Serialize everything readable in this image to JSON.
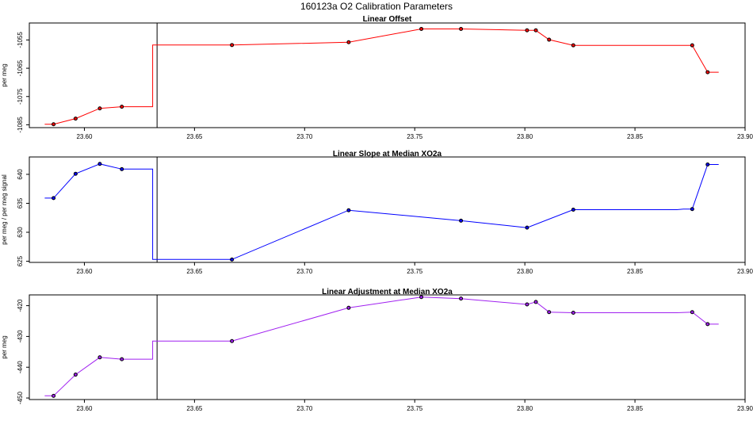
{
  "figure": {
    "main_title": "160123a   O2 Calibration Parameters"
  },
  "chart_data": [
    {
      "type": "line",
      "title": "Linear Offset",
      "xlabel": "",
      "ylabel": "per meg",
      "xlim": [
        23.575,
        23.9
      ],
      "ylim": [
        -1086,
        -1049
      ],
      "x_ticks": [
        23.6,
        23.65,
        23.7,
        23.75,
        23.8,
        23.85,
        23.9
      ],
      "x_tick_labels": [
        "23.60",
        "23.65",
        "23.70",
        "23.75",
        "23.80",
        "23.85",
        "23.90"
      ],
      "y_ticks": [
        -1085,
        -1075,
        -1065,
        -1055
      ],
      "y_tick_labels": [
        "-1085",
        "-1075",
        "-1065",
        "-1055"
      ],
      "color": "#ff0000",
      "line": [
        [
          23.582,
          -1084.8
        ],
        [
          23.586,
          -1084.8
        ],
        [
          23.596,
          -1082.8
        ],
        [
          23.607,
          -1079.2
        ],
        [
          23.617,
          -1078.6
        ],
        [
          23.631,
          -1078.6
        ],
        [
          23.631,
          -1056.8
        ],
        [
          23.667,
          -1056.8
        ],
        [
          23.72,
          -1055.8
        ],
        [
          23.753,
          -1051.1
        ],
        [
          23.771,
          -1051.1
        ],
        [
          23.801,
          -1051.6
        ],
        [
          23.805,
          -1051.6
        ],
        [
          23.811,
          -1054.9
        ],
        [
          23.822,
          -1056.9
        ],
        [
          23.876,
          -1056.9
        ],
        [
          23.883,
          -1066.4
        ],
        [
          23.888,
          -1066.4
        ]
      ],
      "points": [
        [
          23.586,
          -1084.8
        ],
        [
          23.596,
          -1082.8
        ],
        [
          23.607,
          -1079.2
        ],
        [
          23.617,
          -1078.6
        ],
        [
          23.667,
          -1056.8
        ],
        [
          23.72,
          -1055.8
        ],
        [
          23.753,
          -1051.1
        ],
        [
          23.771,
          -1051.1
        ],
        [
          23.801,
          -1051.6
        ],
        [
          23.805,
          -1051.6
        ],
        [
          23.811,
          -1054.9
        ],
        [
          23.822,
          -1056.9
        ],
        [
          23.876,
          -1056.9
        ],
        [
          23.883,
          -1066.4
        ]
      ],
      "vline_x": 23.633
    },
    {
      "type": "line",
      "title": "Linear Slope at Median XO2a",
      "xlabel": "",
      "ylabel": "per meg / per meg signal",
      "xlim": [
        23.575,
        23.9
      ],
      "ylim": [
        624.8,
        643
      ],
      "x_ticks": [
        23.6,
        23.65,
        23.7,
        23.75,
        23.8,
        23.85,
        23.9
      ],
      "x_tick_labels": [
        "23.60",
        "23.65",
        "23.70",
        "23.75",
        "23.80",
        "23.85",
        "23.90"
      ],
      "y_ticks": [
        625,
        630,
        635,
        640
      ],
      "y_tick_labels": [
        "625",
        "630",
        "635",
        "640"
      ],
      "color": "#0000ff",
      "line": [
        [
          23.582,
          635.9
        ],
        [
          23.586,
          635.9
        ],
        [
          23.596,
          640.1
        ],
        [
          23.607,
          641.8
        ],
        [
          23.617,
          640.9
        ],
        [
          23.631,
          640.9
        ],
        [
          23.631,
          625.3
        ],
        [
          23.667,
          625.3
        ],
        [
          23.72,
          633.8
        ],
        [
          23.771,
          632.0
        ],
        [
          23.801,
          630.8
        ],
        [
          23.822,
          633.9
        ],
        [
          23.869,
          633.9
        ],
        [
          23.872,
          634.0
        ],
        [
          23.876,
          634.0
        ],
        [
          23.883,
          641.7
        ],
        [
          23.888,
          641.7
        ]
      ],
      "points": [
        [
          23.586,
          635.9
        ],
        [
          23.596,
          640.1
        ],
        [
          23.607,
          641.8
        ],
        [
          23.617,
          640.9
        ],
        [
          23.667,
          625.3
        ],
        [
          23.72,
          633.8
        ],
        [
          23.771,
          632.0
        ],
        [
          23.801,
          630.8
        ],
        [
          23.822,
          633.9
        ],
        [
          23.876,
          634.0
        ],
        [
          23.883,
          641.7
        ]
      ],
      "vline_x": 23.633
    },
    {
      "type": "line",
      "title": "Linear Adjustment at Median XO2a",
      "xlabel": "",
      "ylabel": "per meg",
      "xlim": [
        23.575,
        23.9
      ],
      "ylim": [
        -450.5,
        -416.5
      ],
      "x_ticks": [
        23.6,
        23.65,
        23.7,
        23.75,
        23.8,
        23.85,
        23.9
      ],
      "x_tick_labels": [
        "23.60",
        "23.65",
        "23.70",
        "23.75",
        "23.80",
        "23.85",
        "23.90"
      ],
      "y_ticks": [
        -450,
        -440,
        -430,
        -420
      ],
      "y_tick_labels": [
        "-450",
        "-440",
        "-430",
        "-420"
      ],
      "color": "#a020f0",
      "line": [
        [
          23.582,
          -449.3
        ],
        [
          23.586,
          -449.3
        ],
        [
          23.596,
          -442.4
        ],
        [
          23.607,
          -436.8
        ],
        [
          23.617,
          -437.4
        ],
        [
          23.631,
          -437.4
        ],
        [
          23.631,
          -431.5
        ],
        [
          23.667,
          -431.5
        ],
        [
          23.72,
          -420.7
        ],
        [
          23.753,
          -417.2
        ],
        [
          23.771,
          -417.7
        ],
        [
          23.801,
          -419.6
        ],
        [
          23.805,
          -418.8
        ],
        [
          23.811,
          -422.1
        ],
        [
          23.822,
          -422.3
        ],
        [
          23.869,
          -422.3
        ],
        [
          23.876,
          -422.1
        ],
        [
          23.883,
          -426.0
        ],
        [
          23.888,
          -426.0
        ]
      ],
      "points": [
        [
          23.586,
          -449.3
        ],
        [
          23.596,
          -442.4
        ],
        [
          23.607,
          -436.8
        ],
        [
          23.617,
          -437.4
        ],
        [
          23.667,
          -431.5
        ],
        [
          23.72,
          -420.7
        ],
        [
          23.753,
          -417.2
        ],
        [
          23.771,
          -417.7
        ],
        [
          23.801,
          -419.6
        ],
        [
          23.805,
          -418.8
        ],
        [
          23.811,
          -422.1
        ],
        [
          23.822,
          -422.3
        ],
        [
          23.876,
          -422.1
        ],
        [
          23.883,
          -426.0
        ]
      ],
      "vline_x": 23.633
    }
  ]
}
